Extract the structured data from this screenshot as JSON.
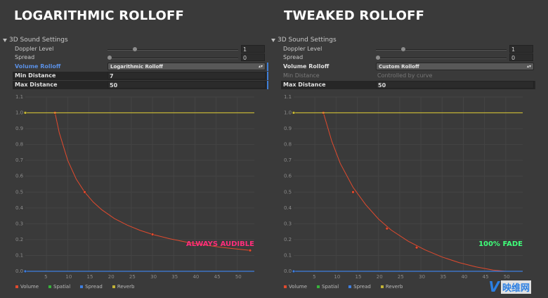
{
  "colors": {
    "volume": "#e04a2e",
    "spatial": "#37b33b",
    "spread": "#3f7fe0",
    "reverb": "#c2b336",
    "always_audible": "#ff2d7a",
    "full_fade": "#3fff7a"
  },
  "panels": [
    {
      "title": "LOGARITHMIC ROLLOFF",
      "section": "3D Sound Settings",
      "doppler_label": "Doppler Level",
      "doppler_value": "1",
      "doppler_fraction": 0.2,
      "spread_label": "Spread",
      "spread_value": "0",
      "spread_fraction": 0.0,
      "rolloff_label": "Volume Rolloff",
      "rolloff_value": "Logarithmic Rolloff",
      "min_label": "Min Distance",
      "min_value": "7",
      "max_label": "Max Distance",
      "max_value": "50",
      "callout": "ALWAYS AUDIBLE"
    },
    {
      "title": "TWEAKED ROLLOFF",
      "section": "3D Sound Settings",
      "doppler_label": "Doppler Level",
      "doppler_value": "1",
      "doppler_fraction": 0.2,
      "spread_label": "Spread",
      "spread_value": "0",
      "spread_fraction": 0.0,
      "rolloff_label": "Volume Rolloff",
      "rolloff_value": "Custom Rolloff",
      "min_label": "Min Distance",
      "min_value": "Controlled by curve",
      "max_label": "Max Distance",
      "max_value": "50",
      "callout": "100% FADE"
    }
  ],
  "legend": {
    "volume": "Volume",
    "spatial": "Spatial",
    "spread": "Spread",
    "reverb": "Reverb"
  },
  "watermark": {
    "mark": "V",
    "text": "映维网"
  },
  "chart_data": [
    {
      "type": "line",
      "title": "LOGARITHMIC ROLLOFF",
      "xlabel": "",
      "ylabel": "",
      "xlim": [
        0,
        54
      ],
      "ylim": [
        0,
        1.1
      ],
      "x_ticks": [
        "5",
        "10",
        "15",
        "20",
        "25",
        "30",
        "35",
        "40",
        "45",
        "50"
      ],
      "y_ticks": [
        "0.0",
        "0.1",
        "0.2",
        "0.3",
        "0.4",
        "0.5",
        "0.6",
        "0.7",
        "0.8",
        "0.9",
        "1.0",
        "1.1"
      ],
      "grid": true,
      "legend": "bottom",
      "series": [
        {
          "name": "Volume",
          "kind": "curve",
          "x": [
            7,
            8,
            10,
            12,
            14,
            16,
            18,
            21,
            24,
            27,
            30,
            34,
            38,
            42,
            46,
            50,
            53
          ],
          "y": [
            1.0,
            0.875,
            0.7,
            0.583,
            0.5,
            0.4375,
            0.389,
            0.333,
            0.292,
            0.259,
            0.233,
            0.206,
            0.184,
            0.167,
            0.152,
            0.14,
            0.132
          ],
          "keys_x": [
            7,
            14,
            30,
            53
          ],
          "keys_y": [
            1.0,
            0.5,
            0.233,
            0.132
          ]
        },
        {
          "name": "Reverb",
          "kind": "flat",
          "x": [
            0,
            54
          ],
          "y": [
            1.0,
            1.0
          ],
          "keys_x": [
            0
          ],
          "keys_y": [
            1.0
          ]
        },
        {
          "name": "Spread",
          "kind": "flat",
          "x": [
            0,
            54
          ],
          "y": [
            0.0,
            0.0
          ],
          "keys_x": [
            0
          ],
          "keys_y": [
            0.0
          ]
        }
      ]
    },
    {
      "type": "line",
      "title": "TWEAKED ROLLOFF",
      "xlabel": "",
      "ylabel": "",
      "xlim": [
        0,
        54
      ],
      "ylim": [
        0,
        1.1
      ],
      "x_ticks": [
        "5",
        "10",
        "15",
        "20",
        "25",
        "30",
        "35",
        "40",
        "45",
        "50"
      ],
      "y_ticks": [
        "0.0",
        "0.1",
        "0.2",
        "0.3",
        "0.4",
        "0.5",
        "0.6",
        "0.7",
        "0.8",
        "0.9",
        "1.0",
        "1.1"
      ],
      "grid": true,
      "legend": "bottom",
      "series": [
        {
          "name": "Volume",
          "kind": "curve",
          "x": [
            7,
            9,
            11,
            14,
            17,
            20,
            23,
            27,
            31,
            35,
            39,
            43,
            47,
            50
          ],
          "y": [
            1.0,
            0.82,
            0.68,
            0.53,
            0.42,
            0.33,
            0.26,
            0.19,
            0.135,
            0.09,
            0.055,
            0.028,
            0.008,
            0.0
          ],
          "keys_x": [
            7,
            14,
            22,
            29
          ],
          "keys_y": [
            1.0,
            0.5,
            0.27,
            0.15
          ]
        },
        {
          "name": "Reverb",
          "kind": "flat",
          "x": [
            0,
            54
          ],
          "y": [
            1.0,
            1.0
          ],
          "keys_x": [
            0
          ],
          "keys_y": [
            1.0
          ]
        },
        {
          "name": "Spread",
          "kind": "flat",
          "x": [
            0,
            54
          ],
          "y": [
            0.0,
            0.0
          ],
          "keys_x": [
            0
          ],
          "keys_y": [
            0.0
          ]
        }
      ]
    }
  ]
}
